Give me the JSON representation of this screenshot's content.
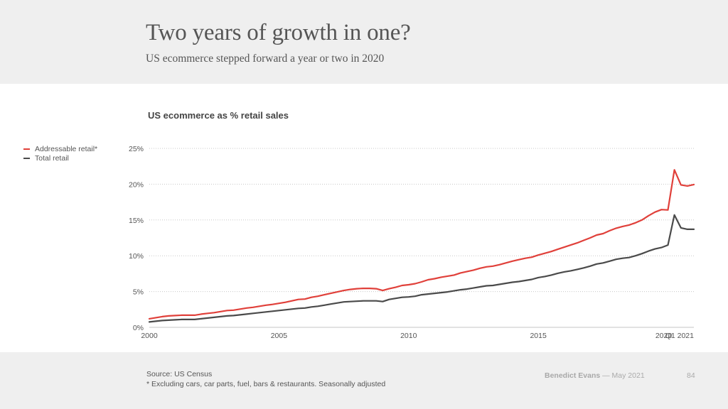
{
  "slide": {
    "title": "Two years of growth in one?",
    "subtitle": "US ecommerce stepped forward a year or two in 2020",
    "source": "Source: US Census",
    "footnote": "* Excluding cars, car parts, fuel, bars & restaurants. Seasonally adjusted",
    "author": "Benedict Evans",
    "date": "— May 2021",
    "page_number": "84"
  },
  "colors": {
    "addressable": "#e0403a",
    "total": "#4a4a4a",
    "grid": "#c8c8c8",
    "axis": "#d8d8d8"
  },
  "chart_data": {
    "type": "line",
    "title": "US ecommerce as % retail sales",
    "xlabel": "",
    "ylabel": "",
    "x_unit": "quarter",
    "x_start": "2000 Q1",
    "x_end": "2021 Q1",
    "ylim": [
      0,
      25
    ],
    "yticks": [
      0,
      5,
      10,
      15,
      20,
      25
    ],
    "ytick_labels": [
      "0%",
      "5%",
      "10%",
      "15%",
      "20%",
      "25%"
    ],
    "xticks": [
      2000,
      2005,
      2010,
      2015,
      2020,
      2021
    ],
    "xtick_labels": [
      "2000",
      "2005",
      "2010",
      "2015",
      "2020",
      "Q1 2021"
    ],
    "grid": "horizontal-dotted",
    "legend_position": "left",
    "series": [
      {
        "name": "Addressable retail*",
        "color_key": "addressable",
        "values": [
          1.2,
          1.35,
          1.5,
          1.6,
          1.65,
          1.7,
          1.7,
          1.7,
          1.85,
          1.95,
          2.05,
          2.2,
          2.35,
          2.4,
          2.55,
          2.7,
          2.8,
          2.95,
          3.1,
          3.2,
          3.35,
          3.5,
          3.7,
          3.9,
          3.95,
          4.2,
          4.35,
          4.55,
          4.75,
          4.95,
          5.15,
          5.3,
          5.4,
          5.45,
          5.45,
          5.4,
          5.15,
          5.4,
          5.6,
          5.85,
          5.95,
          6.1,
          6.35,
          6.65,
          6.8,
          7.0,
          7.15,
          7.3,
          7.6,
          7.8,
          8.0,
          8.25,
          8.45,
          8.55,
          8.75,
          9.0,
          9.25,
          9.45,
          9.65,
          9.8,
          10.1,
          10.35,
          10.6,
          10.9,
          11.2,
          11.5,
          11.8,
          12.15,
          12.5,
          12.9,
          13.1,
          13.5,
          13.85,
          14.1,
          14.3,
          14.6,
          15.0,
          15.6,
          16.1,
          16.45,
          16.4,
          22.0,
          19.9,
          19.75,
          19.95
        ]
      },
      {
        "name": "Total retail",
        "color_key": "total",
        "values": [
          0.75,
          0.85,
          0.95,
          1.0,
          1.05,
          1.1,
          1.1,
          1.1,
          1.2,
          1.3,
          1.4,
          1.5,
          1.6,
          1.65,
          1.75,
          1.85,
          1.95,
          2.05,
          2.15,
          2.25,
          2.35,
          2.45,
          2.55,
          2.65,
          2.7,
          2.85,
          2.95,
          3.1,
          3.25,
          3.4,
          3.55,
          3.6,
          3.65,
          3.7,
          3.7,
          3.7,
          3.6,
          3.9,
          4.05,
          4.2,
          4.25,
          4.35,
          4.55,
          4.65,
          4.75,
          4.85,
          4.95,
          5.1,
          5.25,
          5.35,
          5.5,
          5.65,
          5.8,
          5.85,
          6.0,
          6.15,
          6.3,
          6.4,
          6.55,
          6.7,
          6.95,
          7.1,
          7.3,
          7.55,
          7.75,
          7.9,
          8.1,
          8.3,
          8.55,
          8.85,
          9.0,
          9.25,
          9.5,
          9.65,
          9.75,
          10.0,
          10.3,
          10.65,
          10.95,
          11.15,
          11.5,
          15.7,
          13.9,
          13.7,
          13.7
        ]
      }
    ]
  }
}
